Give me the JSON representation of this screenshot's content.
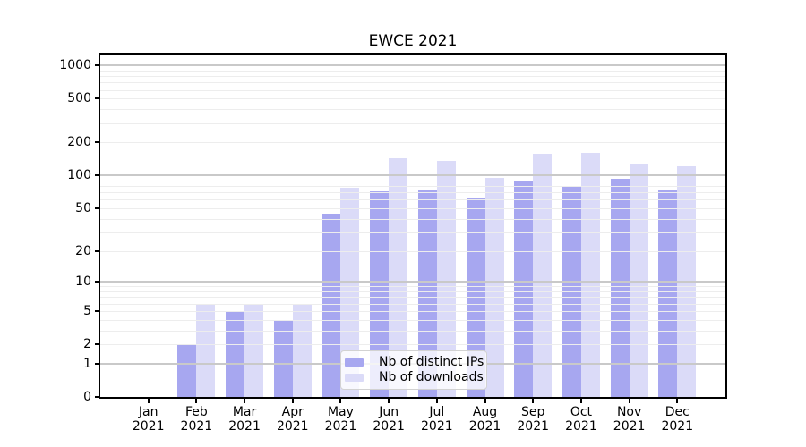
{
  "chart_data": {
    "type": "bar",
    "title": "EWCE 2021",
    "categories": [
      "Jan",
      "Feb",
      "Mar",
      "Apr",
      "May",
      "Jun",
      "Jul",
      "Aug",
      "Sep",
      "Oct",
      "Nov",
      "Dec"
    ],
    "x_year_label": "2021",
    "series": [
      {
        "name": "Nb of distinct IPs",
        "color": "#a7a7f0",
        "values": [
          0,
          2,
          5,
          4,
          45,
          72,
          73,
          62,
          90,
          81,
          94,
          74
        ]
      },
      {
        "name": "Nb of downloads",
        "color": "#dbdbf8",
        "values": [
          0,
          6,
          6,
          6,
          78,
          145,
          135,
          95,
          157,
          162,
          127,
          122
        ]
      }
    ],
    "yticks": [
      "0",
      "1",
      "2",
      "5",
      "10",
      "20",
      "50",
      "100",
      "200",
      "500",
      "1000"
    ],
    "ytick_values": [
      0,
      1,
      2,
      5,
      10,
      20,
      50,
      100,
      200,
      500,
      1000
    ],
    "yscale": "log10(value+1)",
    "ylim": [
      0,
      1260
    ],
    "grid": "on",
    "grid_major_color": "#c9c9c9",
    "grid_minor_color": "#ededed",
    "legend_position": "lower-center",
    "axis_color": "#000000",
    "background_color": "#ffffff"
  }
}
